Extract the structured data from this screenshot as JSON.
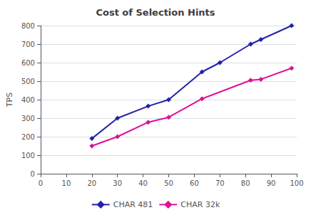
{
  "chart_data": {
    "type": "line",
    "title": "Cost of Selection Hints",
    "ylabel": "TPS",
    "xlim": [
      0,
      100
    ],
    "ylim": [
      0,
      800
    ],
    "xticks": [
      0,
      10,
      20,
      30,
      40,
      50,
      60,
      70,
      80,
      90,
      100
    ],
    "yticks": [
      0,
      100,
      200,
      300,
      400,
      500,
      600,
      700,
      800
    ],
    "grid": "y",
    "legend": "bottom",
    "series": [
      {
        "name": "CHAR 481",
        "color": "#2222AA",
        "marker": "diamond",
        "x": [
          20,
          30,
          42,
          50,
          63,
          70,
          82,
          86,
          98
        ],
        "values": [
          190,
          300,
          365,
          400,
          550,
          600,
          700,
          725,
          800
        ]
      },
      {
        "name": "CHAR 32k",
        "color": "#DD1199",
        "marker": "diamond",
        "x": [
          20,
          30,
          42,
          50,
          63,
          82,
          86,
          98
        ],
        "values": [
          150,
          200,
          278,
          305,
          405,
          505,
          510,
          570
        ]
      }
    ]
  }
}
